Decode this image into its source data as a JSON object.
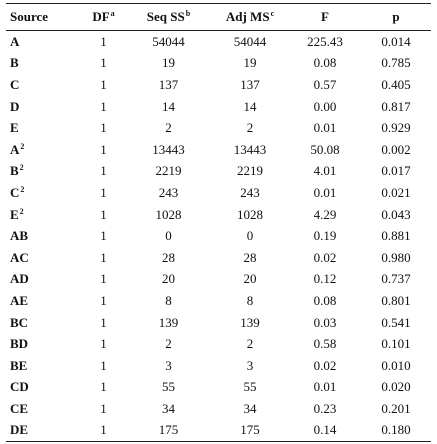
{
  "table": {
    "header": [
      {
        "text": "Source"
      },
      {
        "text": "DF",
        "sup": "a"
      },
      {
        "text": "Seq SS",
        "sup": "b"
      },
      {
        "text": "Adj MS",
        "sup": "c"
      },
      {
        "text": "F"
      },
      {
        "text": "p"
      }
    ],
    "rows": [
      {
        "source": "A",
        "cells": [
          "1",
          "54044",
          "54044",
          "225.43",
          "0.014"
        ]
      },
      {
        "source": "B",
        "cells": [
          "1",
          "19",
          "19",
          "0.08",
          "0.785"
        ]
      },
      {
        "source": "C",
        "cells": [
          "1",
          "137",
          "137",
          "0.57",
          "0.405"
        ]
      },
      {
        "source": "D",
        "cells": [
          "1",
          "14",
          "14",
          "0.00",
          "0.817"
        ]
      },
      {
        "source": "E",
        "cells": [
          "1",
          "2",
          "2",
          "0.01",
          "0.929"
        ]
      },
      {
        "source": "A",
        "sup": "2",
        "cells": [
          "1",
          "13443",
          "13443",
          "50.08",
          "0.002"
        ]
      },
      {
        "source": "B",
        "sup": "2",
        "cells": [
          "1",
          "2219",
          "2219",
          "4.01",
          "0.017"
        ]
      },
      {
        "source": "C",
        "sup": "2",
        "cells": [
          "1",
          "243",
          "243",
          "0.01",
          "0.021"
        ]
      },
      {
        "source": "E",
        "sup": "2",
        "cells": [
          "1",
          "1028",
          "1028",
          "4.29",
          "0.043"
        ]
      },
      {
        "source": "AB",
        "cells": [
          "1",
          "0",
          "0",
          "0.19",
          "0.881"
        ]
      },
      {
        "source": "AC",
        "cells": [
          "1",
          "28",
          "28",
          "0.02",
          "0.980"
        ]
      },
      {
        "source": "AD",
        "cells": [
          "1",
          "20",
          "20",
          "0.12",
          "0.737"
        ]
      },
      {
        "source": "AE",
        "cells": [
          "1",
          "8",
          "8",
          "0.08",
          "0.801"
        ]
      },
      {
        "source": "BC",
        "cells": [
          "1",
          "139",
          "139",
          "0.03",
          "0.541"
        ]
      },
      {
        "source": "BD",
        "cells": [
          "1",
          "2",
          "2",
          "0.58",
          "0.101"
        ]
      },
      {
        "source": "BE",
        "cells": [
          "1",
          "3",
          "3",
          "0.02",
          "0.010"
        ]
      },
      {
        "source": "CD",
        "cells": [
          "1",
          "55",
          "55",
          "0.01",
          "0.020"
        ]
      },
      {
        "source": "CE",
        "cells": [
          "1",
          "34",
          "34",
          "0.23",
          "0.201"
        ]
      },
      {
        "source": "DE",
        "cells": [
          "1",
          "175",
          "175",
          "0.14",
          "0.180"
        ]
      }
    ]
  }
}
